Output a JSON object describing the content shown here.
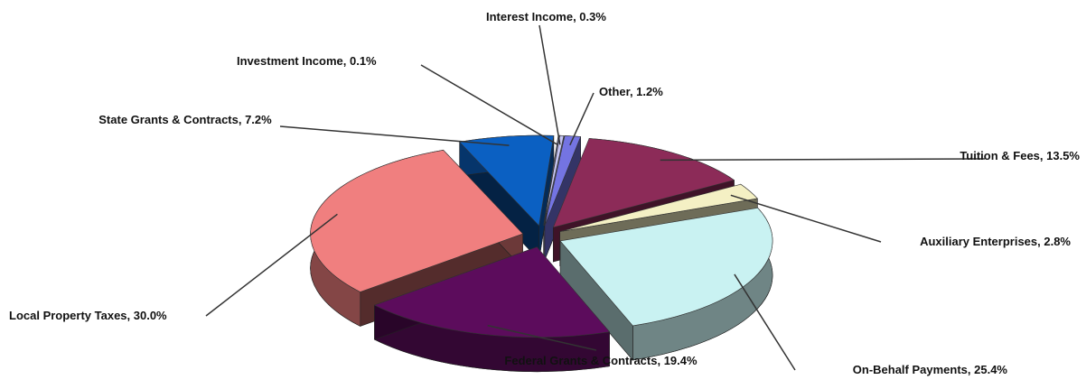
{
  "chart_data": {
    "type": "pie",
    "values": [
      13.5,
      2.8,
      25.4,
      19.4,
      30.0,
      7.2,
      0.1,
      0.3,
      1.2
    ],
    "value_labels": [
      "Tuition & Fees, 13.5%",
      "Auxiliary Enterprises, 2.8%",
      "On-Behalf Payments, 25.4%",
      "Federal Grants & Contracts, 19.4%",
      "Local Property Taxes, 30.0%",
      "State Grants & Contracts, 7.2%",
      "Investment Income, 0.1%",
      "Interest Income, 0.3%",
      "Other, 1.2%"
    ],
    "colors": [
      "#8c2b58",
      "#f4f0c4",
      "#c9f2f2",
      "#5c0c5c",
      "#f07f7f",
      "#0b60c2",
      "#6c6c8e",
      "#c4c4f2",
      "#7474e2"
    ]
  }
}
